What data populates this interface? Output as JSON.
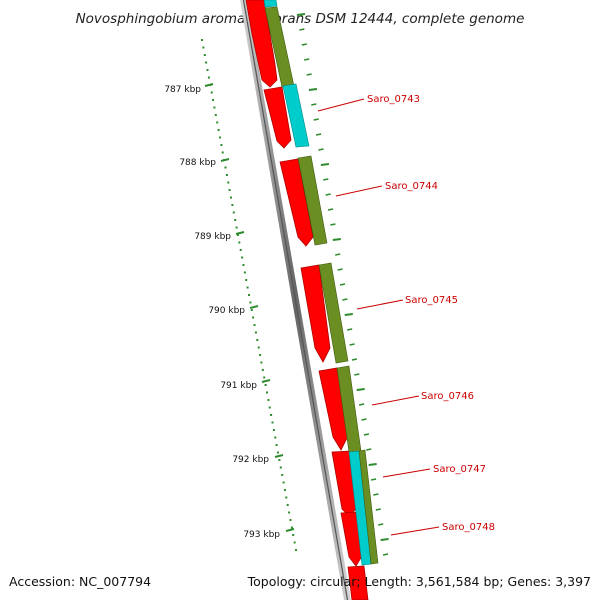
{
  "title": "Novosphingobium aromaticivorans DSM 12444, complete genome",
  "accession": "Accession: NC_007794",
  "summary": "Topology: circular; Length: 3,561,584 bp; Genes: 3,397",
  "scale_labels": [
    "787 kbp",
    "788 kbp",
    "789 kbp",
    "790 kbp",
    "791 kbp",
    "792 kbp",
    "793 kbp"
  ],
  "gene_labels": [
    "Saro_0743",
    "Saro_0744",
    "Saro_0745",
    "Saro_0746",
    "Saro_0747",
    "Saro_0748"
  ],
  "colors": {
    "gene_red": "#ff0000",
    "cds_olive": "#6b8e23",
    "rna_cyan": "#00cccc",
    "tick_green": "#2e8b2e",
    "label_red": "#cc0000",
    "backbone": "#777777"
  }
}
